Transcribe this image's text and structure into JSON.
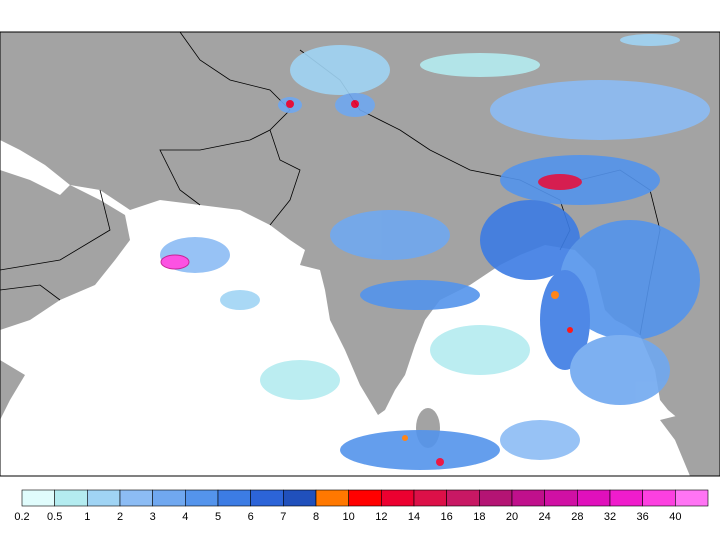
{
  "colorbar": {
    "levels": [
      0.2,
      0.5,
      1,
      2,
      3,
      4,
      5,
      6,
      7,
      8,
      10,
      12,
      14,
      16,
      18,
      20,
      24,
      28,
      32,
      36,
      40
    ],
    "colors": [
      "#e0fcfc",
      "#b4ecf0",
      "#a0d4f4",
      "#8cbcf4",
      "#70a8f0",
      "#5494ec",
      "#3c7ce4",
      "#2c64d8",
      "#2050bc",
      "#ff7800",
      "#ff0000",
      "#ec0030",
      "#dc1048",
      "#c81864",
      "#b41474",
      "#c0108c",
      "#d010a4",
      "#e010bc",
      "#f01ccc",
      "#fc40e0",
      "#ff74f4"
    ]
  }
}
